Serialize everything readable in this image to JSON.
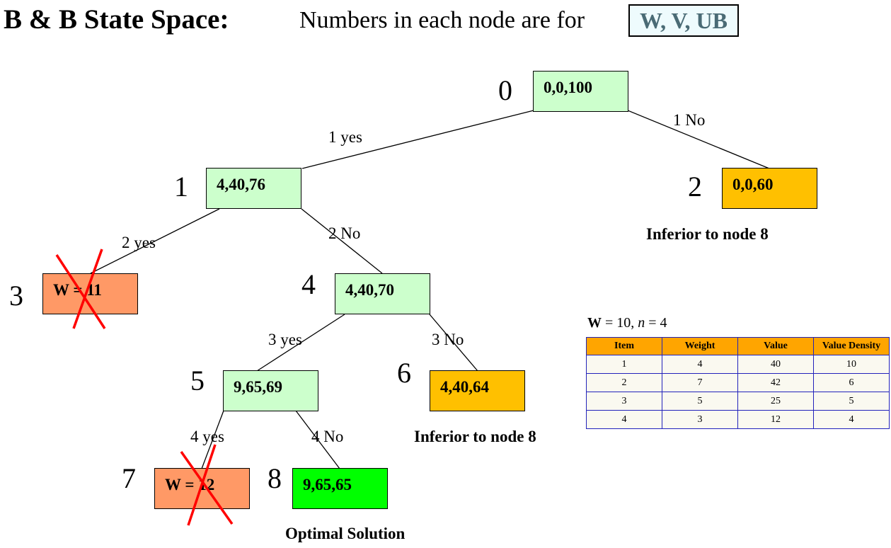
{
  "header": {
    "title": "B & B State Space:",
    "subtitle": "Numbers in each node are for",
    "legend": "W, V, UB"
  },
  "colors": {
    "expanded": "#ccffcc",
    "inferior": "#ffc000",
    "infeasible": "#ff9966",
    "optimal": "#00ff00",
    "cross": "#ff0000"
  },
  "nodes": [
    {
      "id": "0",
      "label": "0,0,100",
      "status": "expanded"
    },
    {
      "id": "1",
      "label": "4,40,76",
      "status": "expanded"
    },
    {
      "id": "2",
      "label": "0,0,60",
      "status": "inferior"
    },
    {
      "id": "3",
      "label": "W = 11",
      "status": "infeasible"
    },
    {
      "id": "4",
      "label": "4,40,70",
      "status": "expanded"
    },
    {
      "id": "5",
      "label": "9,65,69",
      "status": "expanded"
    },
    {
      "id": "6",
      "label": "4,40,64",
      "status": "inferior"
    },
    {
      "id": "7",
      "label": "W = 12",
      "status": "infeasible"
    },
    {
      "id": "8",
      "label": "9,65,65",
      "status": "optimal"
    }
  ],
  "edges": [
    {
      "from": "0",
      "to": "1",
      "label": "1 yes"
    },
    {
      "from": "0",
      "to": "2",
      "label": "1 No"
    },
    {
      "from": "1",
      "to": "3",
      "label": "2 yes"
    },
    {
      "from": "1",
      "to": "4",
      "label": "2 No"
    },
    {
      "from": "4",
      "to": "5",
      "label": "3 yes"
    },
    {
      "from": "4",
      "to": "6",
      "label": "3 No"
    },
    {
      "from": "5",
      "to": "7",
      "label": "4 yes"
    },
    {
      "from": "5",
      "to": "8",
      "label": "4 No"
    }
  ],
  "notes": {
    "node2": "Inferior to node 8",
    "node6": "Inferior to node 8",
    "node8": "Optimal Solution"
  },
  "problem": {
    "W_label": "W",
    "W_value": " = 10, ",
    "n_label": "n",
    "n_value": " = 4"
  },
  "table": {
    "headers": [
      "Item",
      "Weight",
      "Value",
      "Value Density"
    ],
    "rows": [
      [
        "1",
        "4",
        "40",
        "10"
      ],
      [
        "2",
        "7",
        "42",
        "6"
      ],
      [
        "3",
        "5",
        "25",
        "5"
      ],
      [
        "4",
        "3",
        "12",
        "4"
      ]
    ]
  }
}
